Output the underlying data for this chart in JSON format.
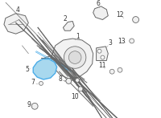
{
  "background_color": "#ffffff",
  "highlight_fill": "#a8d8ee",
  "highlight_edge": "#4aace8",
  "line_color": "#666666",
  "label_color": "#333333",
  "label_fontsize": 5.5
}
